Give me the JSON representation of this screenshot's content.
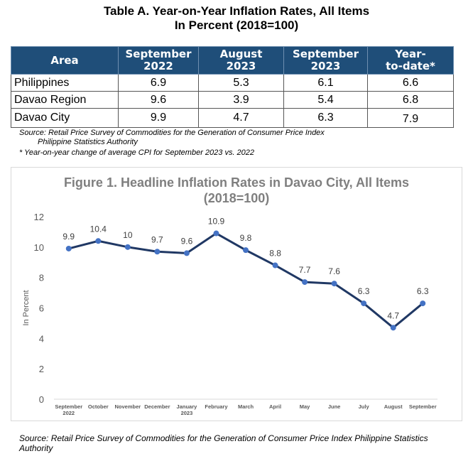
{
  "table": {
    "title_line1": "Table A. Year-on-Year Inflation Rates, All Items",
    "title_line2": "In Percent (2018=100)",
    "headers": [
      {
        "l1": "Area",
        "l2": ""
      },
      {
        "l1": "September",
        "l2": "2022"
      },
      {
        "l1": "August",
        "l2": "2023"
      },
      {
        "l1": "September",
        "l2": "2023"
      },
      {
        "l1": "Year-",
        "l2": "to-date*"
      }
    ],
    "rows": [
      [
        "Philippines",
        "6.9",
        "5.3",
        "6.1",
        "6.6"
      ],
      [
        "Davao Region",
        "9.6",
        "3.9",
        "5.4",
        "6.8"
      ],
      [
        "Davao City",
        "9.9",
        "4.7",
        "6.3",
        "7.9"
      ]
    ],
    "source_line1": "Source: Retail Price Survey of Commodities for the Generation of Consumer Price Index",
    "source_line2": "Philippine Statistics Authority",
    "footnote": "* Year-on-year change of average CPI for September 2023 vs. 2022"
  },
  "chart_data": {
    "type": "line",
    "title_line1": "Figure 1. Headline Inflation Rates in Davao City, All Items",
    "title_line2": "(2018=100)",
    "ylabel": "In Percent",
    "xlabel": "",
    "ylim": [
      0,
      12
    ],
    "yticks": [
      0,
      2,
      4,
      6,
      8,
      10,
      12
    ],
    "categories": [
      {
        "l1": "September",
        "l2": "2022"
      },
      {
        "l1": "October",
        "l2": ""
      },
      {
        "l1": "November",
        "l2": ""
      },
      {
        "l1": "December",
        "l2": ""
      },
      {
        "l1": "January",
        "l2": "2023"
      },
      {
        "l1": "February",
        "l2": ""
      },
      {
        "l1": "March",
        "l2": ""
      },
      {
        "l1": "April",
        "l2": ""
      },
      {
        "l1": "May",
        "l2": ""
      },
      {
        "l1": "June",
        "l2": ""
      },
      {
        "l1": "July",
        "l2": ""
      },
      {
        "l1": "August",
        "l2": ""
      },
      {
        "l1": "September",
        "l2": ""
      }
    ],
    "values": [
      9.9,
      10.4,
      10,
      9.7,
      9.6,
      10.9,
      9.8,
      8.8,
      7.7,
      7.6,
      6.3,
      4.7,
      6.3
    ],
    "value_labels": [
      "9.9",
      "10.4",
      "10",
      "9.7",
      "9.6",
      "10.9",
      "9.8",
      "8.8",
      "7.7",
      "7.6",
      "6.3",
      "4.7",
      "6.3"
    ],
    "grid": false,
    "line_color": "#203864",
    "marker_color": "#4472c4"
  },
  "footer": {
    "source": "Source: Retail Price Survey of Commodities for the Generation of Consumer Price Index Philippine Statistics Authority"
  }
}
